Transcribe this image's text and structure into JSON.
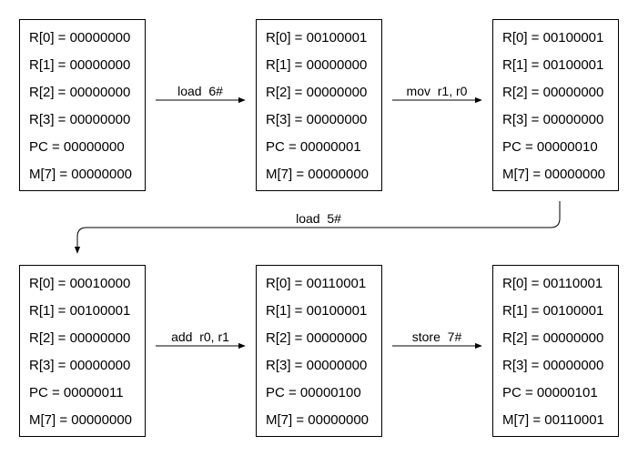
{
  "states": [
    {
      "lines": [
        "R[0] = 00000000",
        "R[1] = 00000000",
        "R[2] = 00000000",
        "R[3] = 00000000",
        "PC = 00000000",
        "M[7] = 00000000"
      ]
    },
    {
      "lines": [
        "R[0] = 00100001",
        "R[1] = 00000000",
        "R[2] = 00000000",
        "R[3] = 00000000",
        "PC = 00000001",
        "M[7] = 00000000"
      ]
    },
    {
      "lines": [
        "R[0] = 00100001",
        "R[1] = 00100001",
        "R[2] = 00000000",
        "R[3] = 00000000",
        "PC = 00000010",
        "M[7] = 00000000"
      ]
    },
    {
      "lines": [
        "R[0] = 00010000",
        "R[1] = 00100001",
        "R[2] = 00000000",
        "R[3] = 00000000",
        "PC = 00000011",
        "M[7] = 00000000"
      ]
    },
    {
      "lines": [
        "R[0] = 00110001",
        "R[1] = 00100001",
        "R[2] = 00000000",
        "R[3] = 00000000",
        "PC = 00000100",
        "M[7] = 00000000"
      ]
    },
    {
      "lines": [
        "R[0] = 00110001",
        "R[1] = 00100001",
        "R[2] = 00000000",
        "R[3] = 00000000",
        "PC = 00000101",
        "M[7] = 00110001"
      ]
    }
  ],
  "transitions": [
    {
      "label": "load  6#"
    },
    {
      "label": "mov  r1, r0"
    },
    {
      "label": "load  5#"
    },
    {
      "label": "add  r0, r1"
    },
    {
      "label": "store  7#"
    }
  ]
}
